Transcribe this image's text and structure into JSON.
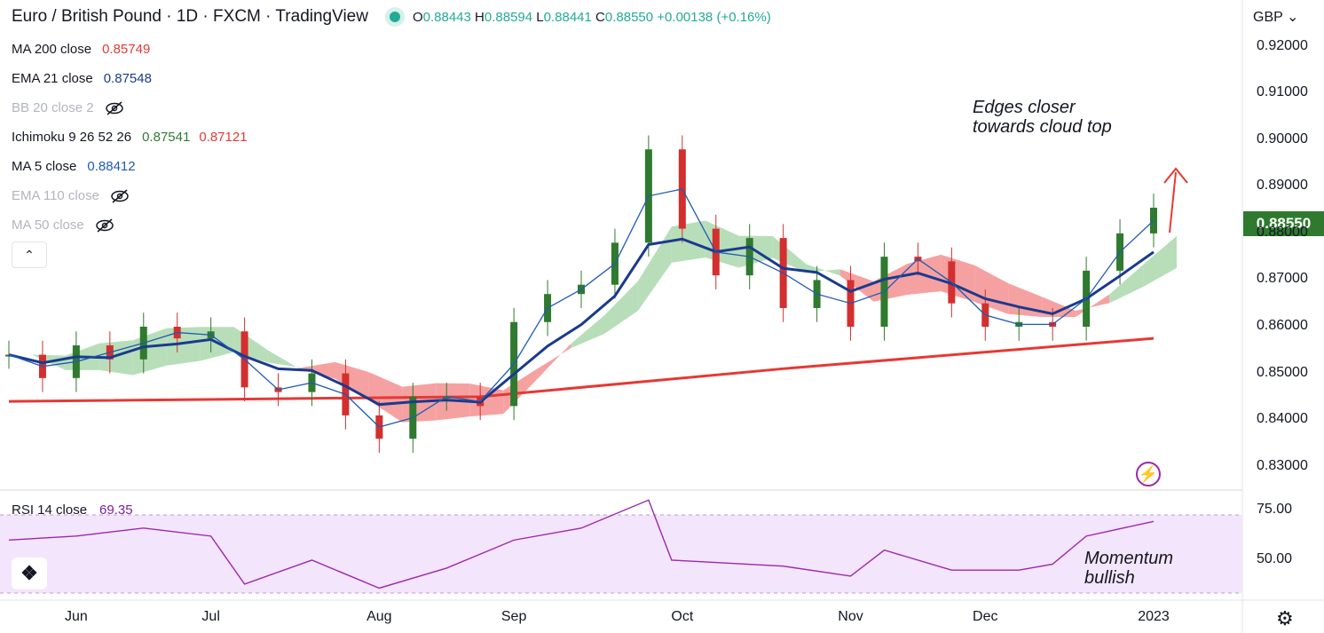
{
  "header": {
    "title": "Euro / British Pound · 1D · FXCM · TradingView",
    "ohlc": {
      "o_key": "O",
      "o": "0.88443",
      "h_key": "H",
      "h": "0.88594",
      "l_key": "L",
      "l": "0.88441",
      "c_key": "C",
      "c": "0.88550",
      "change": "+0.00138 (+0.16%)"
    }
  },
  "indicators": [
    {
      "label": "MA 200 close",
      "value": "0.85749",
      "color": "#e53935",
      "hidden": false
    },
    {
      "label": "EMA 21 close",
      "value": "0.87548",
      "color": "#1a3a8f",
      "hidden": false
    },
    {
      "label": "BB 20 close 2",
      "value": "",
      "color": "#b2b5be",
      "hidden": true
    },
    {
      "label": "Ichimoku 9 26 52 26",
      "value": "0.87541",
      "value2": "0.87121",
      "color": "#2e7d32",
      "color2": "#e53935",
      "hidden": false
    },
    {
      "label": "MA 5 close",
      "value": "0.88412",
      "color": "#1e5bb3",
      "hidden": false
    },
    {
      "label": "EMA 110 close",
      "value": "",
      "color": "#b2b5be",
      "hidden": true
    },
    {
      "label": "MA 50 close",
      "value": "",
      "color": "#b2b5be",
      "hidden": true
    }
  ],
  "currency": "GBP",
  "current_price": "0.88550",
  "annotations": {
    "cloud": "Edges closer\ntowards cloud top",
    "rsi": "Momentum\nbullish"
  },
  "rsi": {
    "label": "RSI 14 close",
    "value": "69.35"
  },
  "colors": {
    "up": "#2f7a2e",
    "down": "#d32f2f",
    "ma200": "#e53935",
    "ema21": "#1a3a8f",
    "ma5": "#1e5bb3",
    "rsi": "#9c27b0",
    "cloud_bull": "#a5d6a7",
    "cloud_bear": "#f48a8a"
  },
  "chart_data": [
    {
      "type": "candlestick",
      "title": "Euro / British Pound · 1D · FXCM",
      "ylim": [
        0.825,
        0.93
      ],
      "y_ticks": [
        "0.92000",
        "0.91000",
        "0.90000",
        "0.89000",
        "0.88000",
        "0.87000",
        "0.86000",
        "0.85000",
        "0.84000",
        "0.83000"
      ],
      "x_ticks": [
        "Jun",
        "Jul",
        "Aug",
        "Sep",
        "Oct",
        "Nov",
        "Dec",
        "2023"
      ],
      "close_series": [
        {
          "x": "May 19",
          "close": 0.854
        },
        {
          "x": "May 26",
          "close": 0.849
        },
        {
          "x": "Jun 2",
          "close": 0.856
        },
        {
          "x": "Jun 9",
          "close": 0.853
        },
        {
          "x": "Jun 16",
          "close": 0.86
        },
        {
          "x": "Jun 23",
          "close": 0.8575
        },
        {
          "x": "Jun 30",
          "close": 0.859
        },
        {
          "x": "Jul 7",
          "close": 0.847
        },
        {
          "x": "Jul 14",
          "close": 0.846
        },
        {
          "x": "Jul 21",
          "close": 0.85
        },
        {
          "x": "Jul 28",
          "close": 0.841
        },
        {
          "x": "Aug 4",
          "close": 0.836
        },
        {
          "x": "Aug 11",
          "close": 0.845
        },
        {
          "x": "Aug 18",
          "close": 0.845
        },
        {
          "x": "Aug 25",
          "close": 0.843
        },
        {
          "x": "Sep 1",
          "close": 0.861
        },
        {
          "x": "Sep 8",
          "close": 0.867
        },
        {
          "x": "Sep 15",
          "close": 0.869
        },
        {
          "x": "Sep 22",
          "close": 0.878
        },
        {
          "x": "Sep 26",
          "close": 0.898
        },
        {
          "x": "Sep 30",
          "close": 0.881
        },
        {
          "x": "Oct 7",
          "close": 0.871
        },
        {
          "x": "Oct 12",
          "close": 0.879
        },
        {
          "x": "Oct 20",
          "close": 0.864
        },
        {
          "x": "Oct 28",
          "close": 0.87
        },
        {
          "x": "Nov 4",
          "close": 0.86
        },
        {
          "x": "Nov 11",
          "close": 0.875
        },
        {
          "x": "Nov 18",
          "close": 0.874
        },
        {
          "x": "Nov 25",
          "close": 0.865
        },
        {
          "x": "Dec 2",
          "close": 0.86
        },
        {
          "x": "Dec 9",
          "close": 0.861
        },
        {
          "x": "Dec 16",
          "close": 0.86
        },
        {
          "x": "Dec 20",
          "close": 0.872
        },
        {
          "x": "Dec 27",
          "close": 0.88
        },
        {
          "x": "Jan 3",
          "close": 0.8855
        }
      ],
      "ma200": [
        {
          "x": "May 19",
          "y": 0.844
        },
        {
          "x": "Aug 25",
          "y": 0.845
        },
        {
          "x": "Oct 20",
          "y": 0.851
        },
        {
          "x": "Jan 3",
          "y": 0.8575
        }
      ],
      "ichimoku_cloud_top_last": 0.892,
      "ichimoku_cloud_bottom_last": 0.866
    },
    {
      "type": "line",
      "title": "RSI 14 close",
      "ylim": [
        30,
        85
      ],
      "y_ticks": [
        "75.00",
        "50.00"
      ],
      "band": [
        30,
        70
      ],
      "series": [
        {
          "x": "May 19",
          "y": 60
        },
        {
          "x": "Jun 2",
          "y": 62
        },
        {
          "x": "Jun 16",
          "y": 66
        },
        {
          "x": "Jun 30",
          "y": 62
        },
        {
          "x": "Jul 7",
          "y": 38
        },
        {
          "x": "Jul 21",
          "y": 50
        },
        {
          "x": "Aug 4",
          "y": 36
        },
        {
          "x": "Aug 18",
          "y": 46
        },
        {
          "x": "Sep 1",
          "y": 60
        },
        {
          "x": "Sep 15",
          "y": 66
        },
        {
          "x": "Sep 26",
          "y": 80
        },
        {
          "x": "Oct 5",
          "y": 50
        },
        {
          "x": "Oct 20",
          "y": 47
        },
        {
          "x": "Nov 4",
          "y": 42
        },
        {
          "x": "Nov 11",
          "y": 55
        },
        {
          "x": "Nov 25",
          "y": 45
        },
        {
          "x": "Dec 9",
          "y": 45
        },
        {
          "x": "Dec 16",
          "y": 48
        },
        {
          "x": "Dec 20",
          "y": 62
        },
        {
          "x": "Jan 3",
          "y": 69.35
        }
      ]
    }
  ]
}
